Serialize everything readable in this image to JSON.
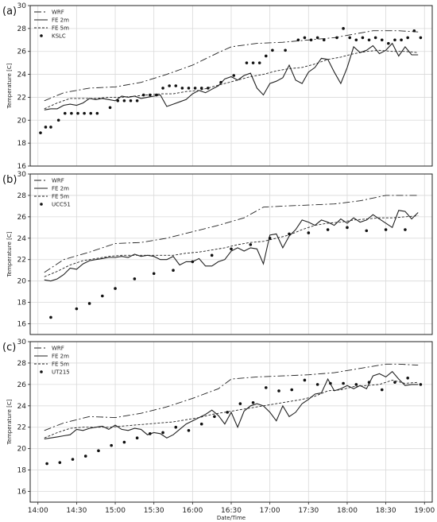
{
  "chart_data": [
    {
      "type": "line",
      "panel_label": "(a)",
      "ylabel": "Temperature [C]",
      "ylim": [
        16,
        30
      ],
      "yticks": [
        16,
        18,
        20,
        22,
        24,
        26,
        28,
        30
      ],
      "xlim": [
        "14:00",
        "19:00"
      ],
      "legend_position": "top-left",
      "grid": true,
      "series": [
        {
          "name": "WRF",
          "style": "dashdot",
          "x": [
            "14:05",
            "14:20",
            "14:40",
            "15:00",
            "15:20",
            "15:40",
            "16:00",
            "16:20",
            "16:30",
            "16:50",
            "17:10",
            "17:30",
            "17:50",
            "18:10",
            "18:20",
            "18:40",
            "18:55"
          ],
          "values": [
            21.7,
            22.4,
            22.8,
            22.9,
            23.3,
            24.0,
            24.8,
            25.9,
            26.4,
            26.7,
            26.8,
            27.0,
            27.2,
            27.6,
            27.8,
            27.8,
            27.7
          ]
        },
        {
          "name": "FE 2m",
          "style": "solid",
          "x": [
            "14:05",
            "14:10",
            "14:15",
            "14:20",
            "14:25",
            "14:30",
            "14:35",
            "14:40",
            "14:45",
            "14:50",
            "14:55",
            "15:00",
            "15:05",
            "15:10",
            "15:15",
            "15:20",
            "15:25",
            "15:30",
            "15:35",
            "15:40",
            "15:45",
            "15:50",
            "15:55",
            "16:00",
            "16:05",
            "16:10",
            "16:15",
            "16:20",
            "16:25",
            "16:30",
            "16:35",
            "16:40",
            "16:45",
            "16:50",
            "16:55",
            "17:00",
            "17:05",
            "17:10",
            "17:15",
            "17:20",
            "17:25",
            "17:30",
            "17:35",
            "17:40",
            "17:45",
            "17:50",
            "17:55",
            "18:00",
            "18:05",
            "18:10",
            "18:15",
            "18:20",
            "18:25",
            "18:30",
            "18:35",
            "18:40",
            "18:45",
            "18:50",
            "18:55"
          ],
          "values": [
            20.9,
            21.0,
            21.0,
            21.3,
            21.4,
            21.3,
            21.5,
            21.9,
            21.8,
            21.9,
            21.8,
            21.7,
            22.1,
            22.0,
            22.1,
            21.9,
            22.0,
            22.1,
            22.2,
            21.2,
            21.4,
            21.6,
            21.8,
            22.3,
            22.6,
            22.4,
            22.7,
            23.0,
            23.6,
            23.8,
            23.5,
            23.9,
            24.1,
            22.8,
            22.2,
            23.2,
            23.4,
            23.7,
            24.8,
            23.5,
            23.2,
            24.2,
            24.6,
            25.4,
            25.3,
            24.2,
            23.2,
            24.6,
            26.4,
            25.9,
            26.1,
            26.5,
            25.8,
            26.1,
            26.7,
            25.6,
            26.4,
            25.7,
            25.7
          ]
        },
        {
          "name": "FE 5m",
          "style": "dashed",
          "x": [
            "14:05",
            "14:15",
            "14:25",
            "14:35",
            "14:45",
            "14:55",
            "15:05",
            "15:15",
            "15:25",
            "15:35",
            "15:45",
            "15:55",
            "16:05",
            "16:15",
            "16:25",
            "16:35",
            "16:45",
            "16:55",
            "17:05",
            "17:15",
            "17:25",
            "17:35",
            "17:45",
            "17:55",
            "18:05",
            "18:15",
            "18:25",
            "18:35",
            "18:45",
            "18:55"
          ],
          "values": [
            21.0,
            21.5,
            21.9,
            21.9,
            21.9,
            22.0,
            22.0,
            22.1,
            22.2,
            22.3,
            22.3,
            22.5,
            22.6,
            22.9,
            23.2,
            23.5,
            23.8,
            24.0,
            24.3,
            24.5,
            24.6,
            24.9,
            25.3,
            25.5,
            25.8,
            26.0,
            26.1,
            26.0,
            26.0,
            25.9
          ]
        },
        {
          "name": "KSLC",
          "style": "points",
          "x": [
            "14:02",
            "14:06",
            "14:10",
            "14:16",
            "14:21",
            "14:26",
            "14:31",
            "14:36",
            "14:41",
            "14:46",
            "14:56",
            "15:02",
            "15:07",
            "15:12",
            "15:17",
            "15:22",
            "15:27",
            "15:32",
            "15:37",
            "15:42",
            "15:47",
            "15:52",
            "15:57",
            "16:02",
            "16:07",
            "16:12",
            "16:22",
            "16:32",
            "16:42",
            "16:47",
            "16:52",
            "16:57",
            "17:02",
            "17:12",
            "17:22",
            "17:27",
            "17:32",
            "17:37",
            "17:42",
            "17:52",
            "17:57",
            "18:02",
            "18:07",
            "18:12",
            "18:17",
            "18:22",
            "18:27",
            "18:32",
            "18:37",
            "18:42",
            "18:47",
            "18:52",
            "18:57"
          ],
          "values": [
            18.9,
            19.4,
            19.4,
            20.0,
            20.6,
            20.6,
            20.6,
            20.6,
            20.6,
            20.6,
            21.1,
            21.7,
            21.7,
            21.7,
            21.7,
            22.2,
            22.2,
            22.2,
            22.8,
            23.0,
            23.0,
            22.8,
            22.8,
            22.8,
            22.8,
            22.8,
            23.3,
            23.9,
            25.0,
            25.0,
            25.0,
            25.6,
            26.1,
            26.1,
            27.0,
            27.2,
            27.0,
            27.2,
            27.0,
            27.2,
            28.0,
            27.2,
            27.0,
            27.2,
            27.0,
            27.2,
            27.0,
            26.7,
            27.0,
            27.0,
            27.2,
            27.8,
            27.2
          ]
        }
      ]
    },
    {
      "type": "line",
      "panel_label": "(b)",
      "ylabel": "Temperature [C]",
      "ylim": [
        15,
        30
      ],
      "yticks": [
        16,
        18,
        20,
        22,
        24,
        26,
        28,
        30
      ],
      "xlim": [
        "14:00",
        "19:00"
      ],
      "legend_position": "top-left",
      "grid": true,
      "series": [
        {
          "name": "WRF",
          "style": "dashdot",
          "x": [
            "14:05",
            "14:20",
            "14:40",
            "15:00",
            "15:20",
            "15:40",
            "16:00",
            "16:20",
            "16:40",
            "16:55",
            "17:10",
            "17:30",
            "17:50",
            "18:10",
            "18:30",
            "18:40",
            "18:55"
          ],
          "values": [
            20.8,
            22.0,
            22.7,
            23.5,
            23.6,
            24.0,
            24.6,
            25.2,
            25.9,
            26.9,
            27.0,
            27.1,
            27.2,
            27.5,
            28.0,
            28.0,
            28.0
          ]
        },
        {
          "name": "FE 2m",
          "style": "solid",
          "x": [
            "14:05",
            "14:10",
            "14:15",
            "14:20",
            "14:25",
            "14:30",
            "14:35",
            "14:40",
            "14:45",
            "14:50",
            "14:55",
            "15:00",
            "15:05",
            "15:10",
            "15:15",
            "15:20",
            "15:25",
            "15:30",
            "15:35",
            "15:40",
            "15:45",
            "15:50",
            "15:55",
            "16:00",
            "16:05",
            "16:10",
            "16:15",
            "16:20",
            "16:25",
            "16:30",
            "16:35",
            "16:40",
            "16:45",
            "16:50",
            "16:55",
            "17:00",
            "17:05",
            "17:10",
            "17:15",
            "17:20",
            "17:25",
            "17:30",
            "17:35",
            "17:40",
            "17:45",
            "17:50",
            "17:55",
            "18:00",
            "18:05",
            "18:10",
            "18:15",
            "18:20",
            "18:25",
            "18:30",
            "18:35",
            "18:40",
            "18:45",
            "18:50",
            "18:55"
          ],
          "values": [
            20.1,
            20.0,
            20.2,
            20.6,
            21.2,
            21.1,
            21.6,
            21.9,
            22.0,
            22.1,
            22.2,
            22.2,
            22.3,
            22.2,
            22.5,
            22.3,
            22.4,
            22.3,
            22.0,
            22.0,
            22.3,
            21.5,
            21.8,
            21.8,
            22.1,
            21.4,
            21.4,
            21.8,
            22.0,
            22.8,
            23.1,
            22.8,
            23.1,
            23.0,
            21.6,
            24.3,
            24.4,
            23.1,
            24.2,
            24.8,
            25.7,
            25.5,
            25.2,
            25.7,
            25.5,
            25.2,
            25.8,
            25.4,
            25.9,
            25.5,
            25.7,
            26.2,
            25.8,
            25.4,
            25.0,
            26.6,
            26.5,
            25.8,
            26.4
          ]
        },
        {
          "name": "FE 5m",
          "style": "dashed",
          "x": [
            "14:05",
            "14:15",
            "14:25",
            "14:35",
            "14:45",
            "14:55",
            "15:05",
            "15:15",
            "15:25",
            "15:35",
            "15:45",
            "15:55",
            "16:05",
            "16:15",
            "16:25",
            "16:35",
            "16:45",
            "16:55",
            "17:05",
            "17:15",
            "17:25",
            "17:35",
            "17:45",
            "17:55",
            "18:05",
            "18:15",
            "18:25",
            "18:35",
            "18:45",
            "18:55"
          ],
          "values": [
            20.4,
            20.9,
            21.5,
            21.9,
            22.1,
            22.3,
            22.4,
            22.4,
            22.4,
            22.4,
            22.4,
            22.6,
            22.7,
            22.9,
            23.1,
            23.4,
            23.6,
            23.7,
            24.0,
            24.3,
            24.8,
            25.2,
            25.4,
            25.5,
            25.7,
            25.8,
            25.9,
            25.9,
            26.0,
            26.1
          ]
        },
        {
          "name": "UCC51",
          "style": "points",
          "x": [
            "14:10",
            "14:30",
            "14:40",
            "14:50",
            "15:00",
            "15:15",
            "15:30",
            "15:45",
            "16:00",
            "16:15",
            "16:30",
            "16:45",
            "17:00",
            "17:15",
            "17:30",
            "17:45",
            "18:00",
            "18:15",
            "18:30",
            "18:45"
          ],
          "values": [
            16.6,
            17.4,
            17.9,
            18.6,
            19.3,
            20.2,
            20.7,
            21.0,
            21.8,
            22.4,
            23.0,
            23.4,
            24.0,
            24.4,
            24.5,
            24.8,
            25.0,
            24.7,
            24.8,
            24.8
          ]
        }
      ]
    },
    {
      "type": "line",
      "panel_label": "(c)",
      "ylabel": "Temperature [C]",
      "ylim": [
        15,
        30
      ],
      "yticks": [
        16,
        18,
        20,
        22,
        24,
        26,
        28,
        30
      ],
      "xlabel": "Date/Time",
      "xticks": [
        "14:00",
        "14:30",
        "15:00",
        "15:30",
        "16:00",
        "16:30",
        "17:00",
        "17:30",
        "18:00",
        "18:30",
        "19:00"
      ],
      "xlim": [
        "14:00",
        "19:00"
      ],
      "legend_position": "top-left",
      "grid": true,
      "series": [
        {
          "name": "WRF",
          "style": "dashdot",
          "x": [
            "14:05",
            "14:20",
            "14:40",
            "15:00",
            "15:20",
            "15:40",
            "16:00",
            "16:20",
            "16:30",
            "16:50",
            "17:10",
            "17:30",
            "17:50",
            "18:10",
            "18:30",
            "18:40",
            "18:55"
          ],
          "values": [
            21.7,
            22.4,
            23.0,
            22.9,
            23.3,
            23.9,
            24.7,
            25.6,
            26.5,
            26.7,
            26.8,
            26.9,
            27.1,
            27.5,
            27.9,
            27.9,
            27.8
          ]
        },
        {
          "name": "FE 2m",
          "style": "solid",
          "x": [
            "14:05",
            "14:10",
            "14:15",
            "14:20",
            "14:25",
            "14:30",
            "14:35",
            "14:40",
            "14:45",
            "14:50",
            "14:55",
            "15:00",
            "15:05",
            "15:10",
            "15:15",
            "15:20",
            "15:25",
            "15:30",
            "15:35",
            "15:40",
            "15:45",
            "15:50",
            "15:55",
            "16:00",
            "16:05",
            "16:10",
            "16:15",
            "16:20",
            "16:25",
            "16:30",
            "16:35",
            "16:40",
            "16:45",
            "16:50",
            "16:55",
            "17:00",
            "17:05",
            "17:10",
            "17:15",
            "17:20",
            "17:25",
            "17:30",
            "17:35",
            "17:40",
            "17:45",
            "17:50",
            "17:55",
            "18:00",
            "18:05",
            "18:10",
            "18:15",
            "18:20",
            "18:25",
            "18:30",
            "18:35",
            "18:40",
            "18:45",
            "18:50",
            "18:55"
          ],
          "values": [
            20.9,
            21.0,
            21.1,
            21.2,
            21.3,
            21.8,
            21.7,
            21.9,
            22.0,
            22.1,
            21.8,
            22.2,
            21.8,
            21.7,
            21.9,
            21.8,
            21.3,
            21.5,
            21.4,
            21.0,
            21.3,
            21.8,
            22.3,
            22.6,
            22.9,
            23.2,
            23.6,
            23.1,
            22.3,
            23.4,
            22.0,
            23.5,
            24.0,
            24.2,
            24.0,
            23.4,
            22.6,
            24.0,
            23.0,
            23.4,
            24.2,
            24.6,
            25.1,
            25.2,
            26.5,
            25.4,
            25.6,
            25.9,
            25.6,
            25.9,
            25.6,
            26.8,
            27.0,
            26.7,
            27.2,
            26.5,
            25.9,
            26.0,
            26.0
          ]
        },
        {
          "name": "FE 5m",
          "style": "dashed",
          "x": [
            "14:05",
            "14:15",
            "14:25",
            "14:35",
            "14:45",
            "14:55",
            "15:05",
            "15:15",
            "15:25",
            "15:35",
            "15:45",
            "15:55",
            "16:05",
            "16:15",
            "16:25",
            "16:35",
            "16:45",
            "16:55",
            "17:05",
            "17:15",
            "17:25",
            "17:35",
            "17:45",
            "17:55",
            "18:05",
            "18:15",
            "18:25",
            "18:35",
            "18:45",
            "18:55"
          ],
          "values": [
            21.0,
            21.5,
            21.9,
            22.0,
            22.0,
            22.0,
            22.1,
            22.2,
            22.3,
            22.4,
            22.5,
            22.7,
            22.9,
            23.2,
            23.4,
            23.6,
            23.8,
            24.0,
            24.2,
            24.4,
            24.6,
            24.9,
            25.4,
            25.5,
            25.8,
            25.9,
            26.0,
            26.4,
            26.1,
            26.2
          ]
        },
        {
          "name": "UT215",
          "style": "points",
          "x": [
            "14:07",
            "14:17",
            "14:27",
            "14:37",
            "14:47",
            "14:57",
            "15:07",
            "15:17",
            "15:27",
            "15:37",
            "15:47",
            "15:57",
            "16:07",
            "16:17",
            "16:27",
            "16:37",
            "16:47",
            "16:57",
            "17:07",
            "17:17",
            "17:27",
            "17:37",
            "17:47",
            "17:57",
            "18:07",
            "18:17",
            "18:27",
            "18:37",
            "18:47",
            "18:57"
          ],
          "values": [
            18.6,
            18.7,
            19.0,
            19.3,
            19.8,
            20.3,
            20.6,
            21.0,
            21.4,
            21.5,
            22.0,
            21.7,
            22.3,
            23.0,
            23.4,
            24.2,
            24.3,
            25.7,
            25.4,
            25.5,
            26.4,
            26.0,
            26.1,
            26.1,
            26.0,
            26.2,
            25.5,
            26.2,
            26.6,
            26.0
          ]
        }
      ]
    }
  ]
}
